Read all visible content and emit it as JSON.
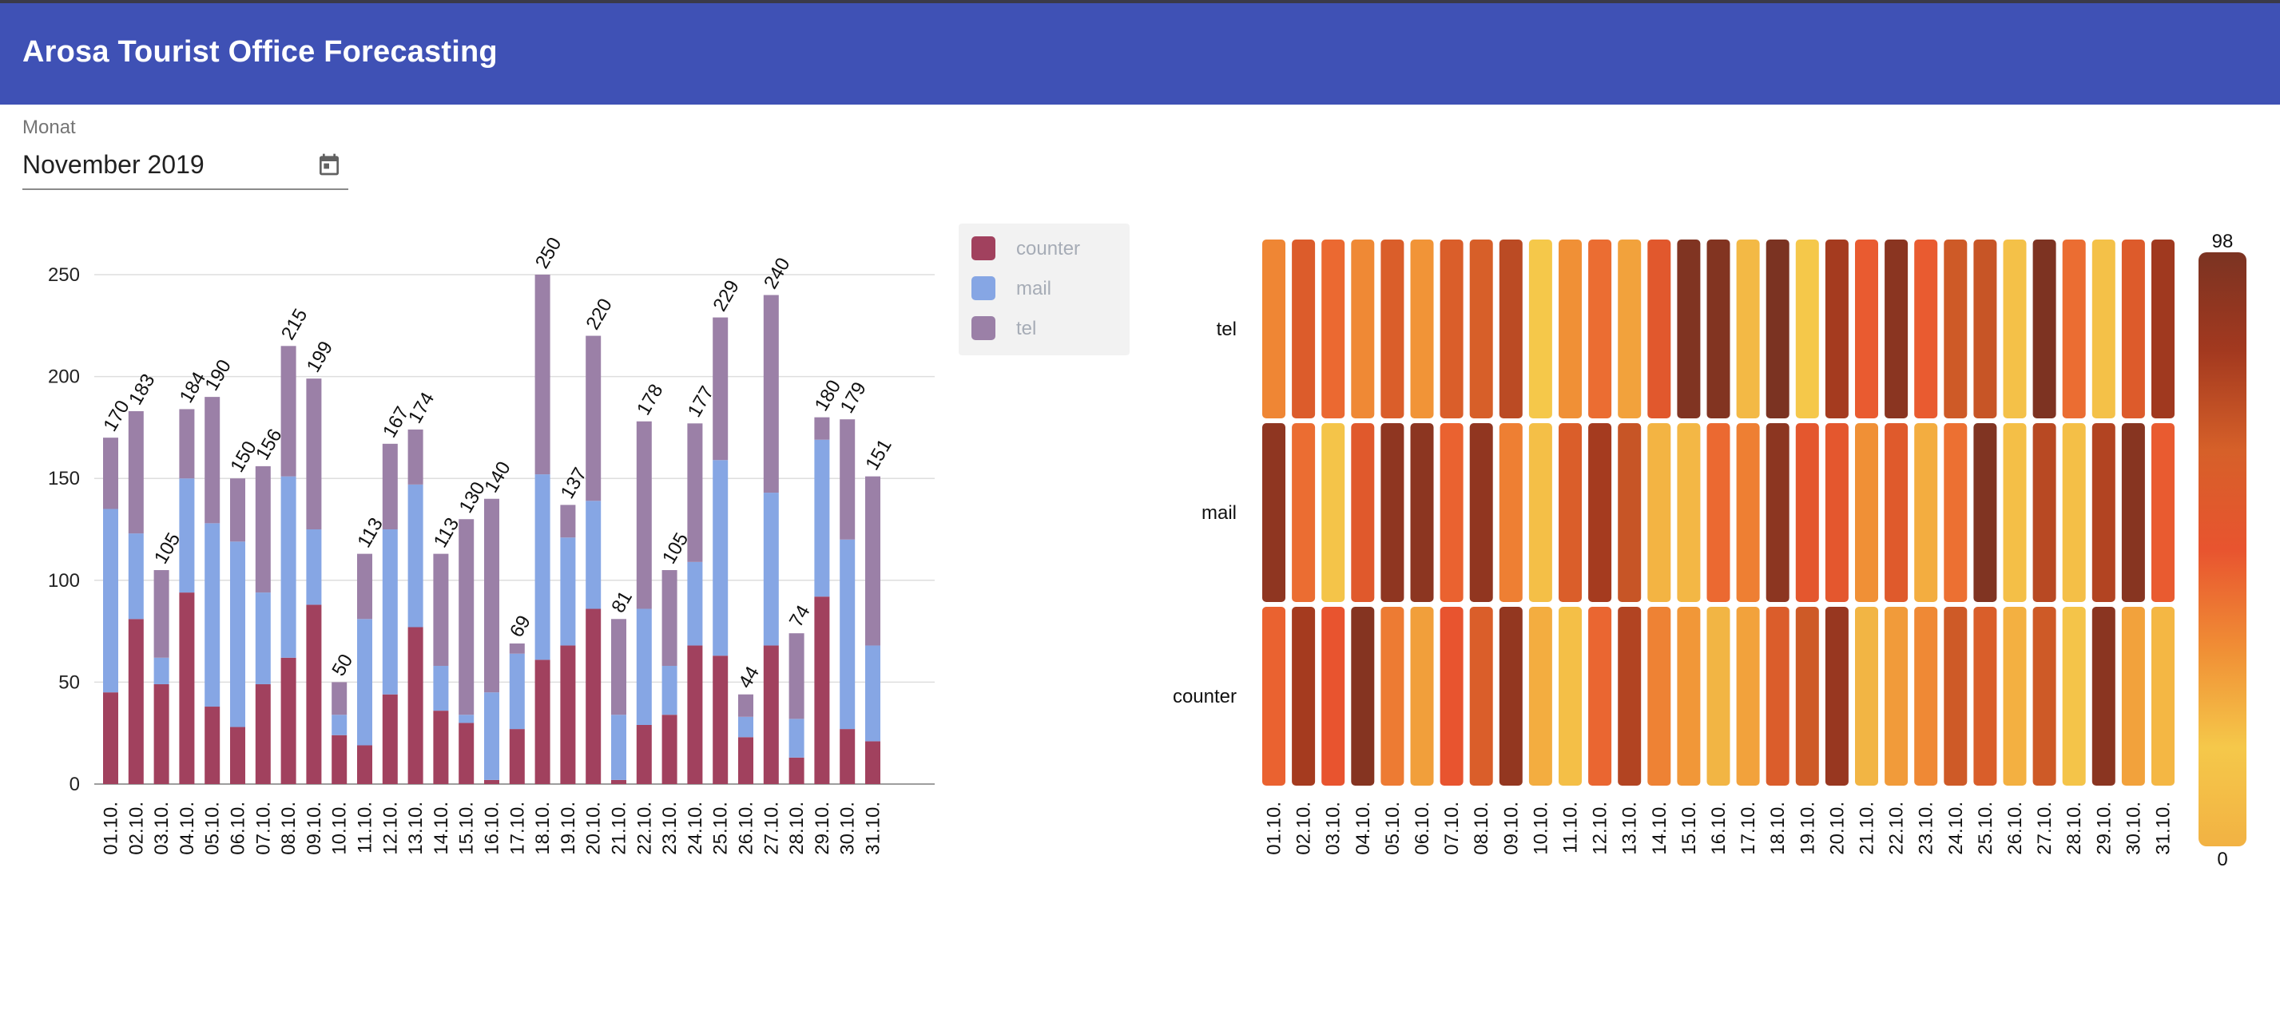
{
  "app": {
    "title": "Arosa Tourist Office Forecasting"
  },
  "month_picker": {
    "label": "Monat",
    "value": "November 2019",
    "icon": "calendar-icon"
  },
  "colors": {
    "header": "#3f51b5",
    "counter": "#a1415e",
    "mail": "#86a6e4",
    "tel": "#9b80a7",
    "heatmap_scale": [
      "#f2b243",
      "#f5c84a",
      "#f08e35",
      "#e8542f",
      "#d66029",
      "#a3391f",
      "#7b3322"
    ]
  },
  "chart_data": [
    {
      "type": "bar",
      "stacked": true,
      "categories": [
        "01.10.",
        "02.10.",
        "03.10.",
        "04.10.",
        "05.10.",
        "06.10.",
        "07.10.",
        "08.10.",
        "09.10.",
        "10.10.",
        "11.10.",
        "12.10.",
        "13.10.",
        "14.10.",
        "15.10.",
        "16.10.",
        "17.10.",
        "18.10.",
        "19.10.",
        "20.10.",
        "21.10.",
        "22.10.",
        "23.10.",
        "24.10.",
        "25.10.",
        "26.10.",
        "27.10.",
        "28.10.",
        "29.10.",
        "30.10.",
        "31.10."
      ],
      "series": [
        {
          "name": "counter",
          "values": [
            45,
            81,
            49,
            94,
            38,
            28,
            49,
            62,
            88,
            24,
            19,
            44,
            77,
            36,
            30,
            2,
            27,
            61,
            68,
            86,
            2,
            29,
            34,
            68,
            63,
            23,
            68,
            13,
            92,
            27,
            21
          ]
        },
        {
          "name": "mail",
          "values": [
            90,
            42,
            13,
            56,
            90,
            91,
            45,
            89,
            37,
            10,
            62,
            81,
            70,
            22,
            4,
            43,
            37,
            91,
            53,
            53,
            32,
            57,
            24,
            41,
            96,
            10,
            75,
            19,
            77,
            93,
            47
          ]
        },
        {
          "name": "tel",
          "values": [
            35,
            60,
            43,
            34,
            62,
            31,
            62,
            64,
            74,
            16,
            32,
            42,
            27,
            55,
            96,
            95,
            5,
            98,
            16,
            81,
            47,
            92,
            47,
            68,
            70,
            11,
            97,
            42,
            11,
            59,
            83
          ]
        }
      ],
      "totals": [
        170,
        183,
        105,
        184,
        190,
        150,
        156,
        215,
        199,
        50,
        113,
        167,
        174,
        113,
        130,
        140,
        69,
        250,
        137,
        220,
        81,
        178,
        105,
        177,
        229,
        44,
        240,
        74,
        180,
        179,
        151
      ],
      "yticks": [
        0,
        50,
        100,
        150,
        200,
        250
      ],
      "ylim": [
        0,
        250
      ],
      "grid": true,
      "legend_position": "top-right"
    },
    {
      "type": "heatmap",
      "x": [
        "01.10.",
        "02.10.",
        "03.10.",
        "04.10.",
        "05.10.",
        "06.10.",
        "07.10.",
        "08.10.",
        "09.10.",
        "10.10.",
        "11.10.",
        "12.10.",
        "13.10.",
        "14.10.",
        "15.10.",
        "16.10.",
        "17.10.",
        "18.10.",
        "19.10.",
        "20.10.",
        "21.10.",
        "22.10.",
        "23.10.",
        "24.10.",
        "25.10.",
        "26.10.",
        "27.10.",
        "28.10.",
        "29.10.",
        "30.10.",
        "31.10."
      ],
      "y": [
        "tel",
        "mail",
        "counter"
      ],
      "values": [
        [
          35,
          60,
          43,
          34,
          62,
          31,
          62,
          64,
          74,
          16,
          32,
          42,
          27,
          55,
          96,
          95,
          5,
          98,
          16,
          81,
          47,
          92,
          47,
          68,
          70,
          11,
          97,
          42,
          11,
          59,
          83
        ],
        [
          90,
          42,
          13,
          56,
          90,
          91,
          45,
          89,
          37,
          10,
          62,
          81,
          70,
          22,
          4,
          43,
          37,
          91,
          53,
          53,
          32,
          57,
          24,
          41,
          96,
          10,
          75,
          19,
          77,
          93,
          47
        ],
        [
          45,
          81,
          49,
          94,
          38,
          28,
          49,
          62,
          88,
          24,
          19,
          44,
          77,
          36,
          30,
          2,
          27,
          61,
          68,
          86,
          2,
          29,
          34,
          68,
          63,
          23,
          68,
          13,
          92,
          27,
          21
        ]
      ],
      "colorbar": {
        "min": 0,
        "max": 98,
        "min_label": "0",
        "max_label": "98"
      }
    }
  ]
}
